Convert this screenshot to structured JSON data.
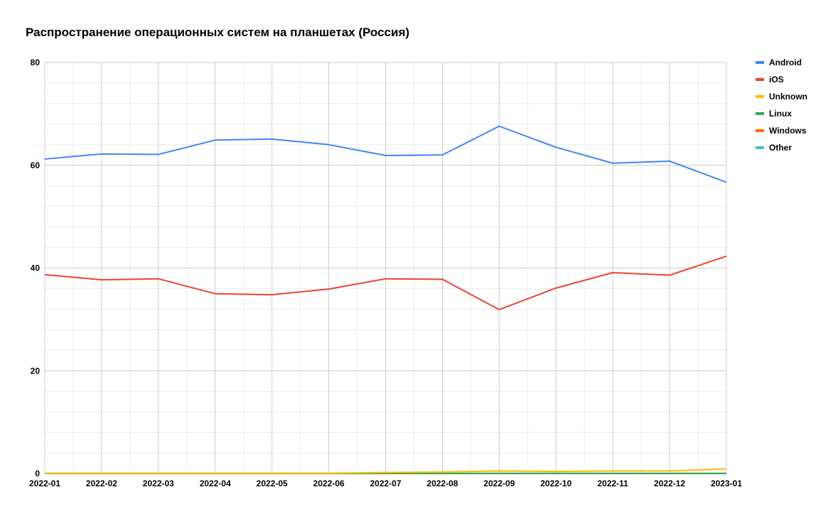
{
  "chart_data": {
    "type": "line",
    "title": "Распространение операционных систем на планшетах (Россия)",
    "x": [
      "2022-01",
      "2022-02",
      "2022-03",
      "2022-04",
      "2022-05",
      "2022-06",
      "2022-07",
      "2022-08",
      "2022-09",
      "2022-10",
      "2022-11",
      "2022-12",
      "2023-01"
    ],
    "ylim": [
      0,
      80
    ],
    "yticks": [
      0,
      20,
      40,
      60,
      80
    ],
    "grid": true,
    "legend_position": "right",
    "series": [
      {
        "name": "Android",
        "color": "#4285f4",
        "values": [
          61.2,
          62.2,
          62.1,
          64.9,
          65.1,
          64.0,
          61.9,
          62.0,
          67.6,
          63.5,
          60.4,
          60.8,
          56.7
        ]
      },
      {
        "name": "iOS",
        "color": "#ea4335",
        "values": [
          38.7,
          37.7,
          37.9,
          35.0,
          34.8,
          35.9,
          37.9,
          37.8,
          31.9,
          36.1,
          39.1,
          38.6,
          42.3
        ]
      },
      {
        "name": "Unknown",
        "color": "#fbbc04",
        "values": [
          0.05,
          0.05,
          0.05,
          0.05,
          0.05,
          0.05,
          0.2,
          0.3,
          0.5,
          0.4,
          0.5,
          0.5,
          0.9
        ]
      },
      {
        "name": "Linux",
        "color": "#34a853",
        "values": [
          0.02,
          0.02,
          0.02,
          0.02,
          0.02,
          0.02,
          0.02,
          0.02,
          0.02,
          0.02,
          0.02,
          0.02,
          0.02
        ]
      },
      {
        "name": "Windows",
        "color": "#ff6d01",
        "values": [
          0.01,
          0.01,
          0.01,
          0.01,
          0.01,
          0.01,
          0.01,
          0.01,
          0.01,
          0.01,
          0.01,
          0.01,
          0.01
        ]
      },
      {
        "name": "Other",
        "color": "#46bdc6",
        "values": [
          0.01,
          0.01,
          0.01,
          0.01,
          0.01,
          0.01,
          0.01,
          0.01,
          0.01,
          0.01,
          0.01,
          0.01,
          0.01
        ]
      }
    ]
  }
}
